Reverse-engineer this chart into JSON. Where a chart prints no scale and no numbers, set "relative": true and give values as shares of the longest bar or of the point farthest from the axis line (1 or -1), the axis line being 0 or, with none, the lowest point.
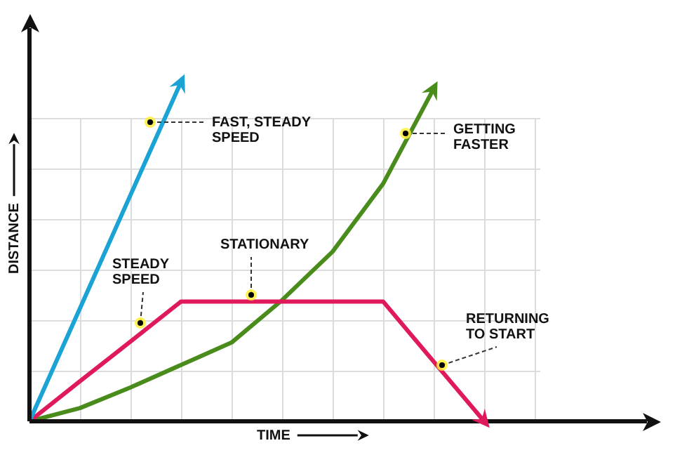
{
  "chart_data": {
    "type": "line",
    "relative": true,
    "xlabel": "TIME",
    "ylabel": "DISTANCE",
    "categories": [
      null,
      null,
      null,
      null,
      null,
      null,
      null,
      null,
      null,
      null,
      null
    ],
    "grid": true,
    "marker": "none",
    "line_style": "solid",
    "legend": false,
    "series": [
      {
        "color": "#1aa3d4",
        "values": [
          0,
          0.333,
          0.667,
          1,
          null,
          null,
          null,
          null,
          null,
          null,
          null
        ]
      },
      {
        "color": "#e0195a",
        "values": [
          0,
          0.118,
          0.235,
          0.353,
          0.353,
          0.353,
          0.353,
          0.353,
          0.176,
          0,
          null
        ]
      },
      {
        "color": "#4a8c1c",
        "values": [
          0,
          0.039,
          0.1,
          0.166,
          0.232,
          0.357,
          0.5,
          0.7,
          0.98,
          null,
          null
        ]
      }
    ],
    "annotations": [
      "FAST, STEADY\nSPEED",
      "GETTING\nFASTER",
      "STEADY\nSPEED",
      "STATIONARY",
      "RETURNING\nTO START"
    ]
  }
}
